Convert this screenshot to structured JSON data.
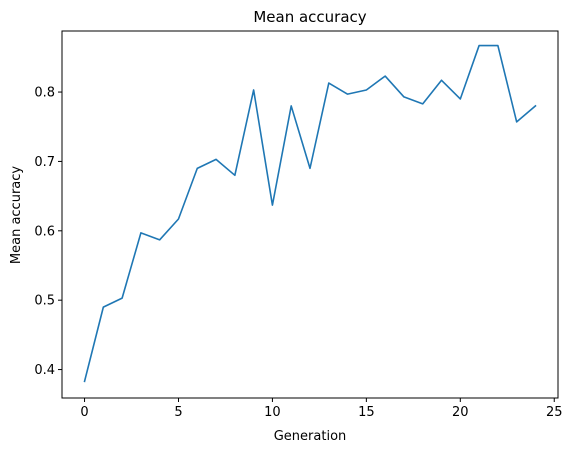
{
  "chart_data": {
    "type": "line",
    "title": "Mean accuracy",
    "xlabel": "Generation",
    "ylabel": "Mean accuracy",
    "xlim": [
      -1.2,
      25.2
    ],
    "ylim": [
      0.359,
      0.888
    ],
    "xticks": [
      0,
      5,
      10,
      15,
      20,
      25
    ],
    "yticks": [
      0.4,
      0.5,
      0.6,
      0.7,
      0.8
    ],
    "grid": false,
    "series": [
      {
        "color": "#1f77b4",
        "x": [
          0,
          1,
          2,
          3,
          4,
          5,
          6,
          7,
          8,
          9,
          10,
          11,
          12,
          13,
          14,
          15,
          16,
          17,
          18,
          19,
          20,
          21,
          22,
          23,
          24
        ],
        "values": [
          0.383,
          0.49,
          0.503,
          0.597,
          0.587,
          0.617,
          0.69,
          0.703,
          0.68,
          0.803,
          0.637,
          0.78,
          0.69,
          0.813,
          0.797,
          0.803,
          0.823,
          0.793,
          0.783,
          0.817,
          0.79,
          0.867,
          0.867,
          0.757,
          0.78
        ]
      }
    ]
  }
}
